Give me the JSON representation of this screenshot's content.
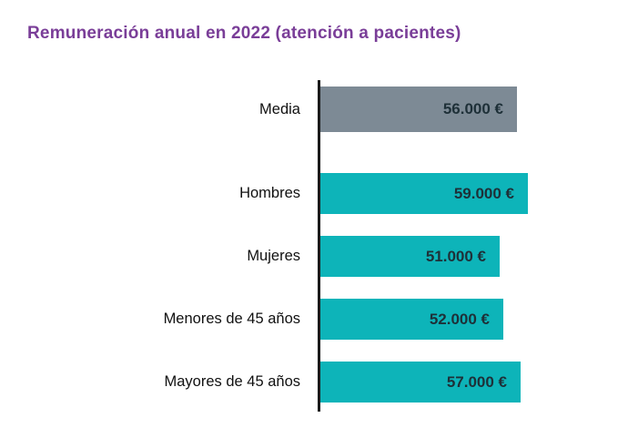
{
  "title": "Remuneración anual en 2022 (atención a pacientes)",
  "colors": {
    "title_text": "#7a3e98",
    "axis_line": "#1a1a1a",
    "label_text": "#111111",
    "value_text": "#1e3038",
    "bar_teal": "#0db4b9",
    "bar_gray": "#7d8a95",
    "background": "#ffffff"
  },
  "chart_data": {
    "type": "bar",
    "orientation": "horizontal",
    "title": "Remuneración anual en 2022 (atención a pacientes)",
    "categories": [
      "Media",
      "Hombres",
      "Mujeres",
      "Menores de 45 años",
      "Mayores de 45 años"
    ],
    "values": [
      56000,
      59000,
      51000,
      52000,
      57000
    ],
    "value_labels": [
      "56.000 €",
      "59.000 €",
      "51.000 €",
      "52.000 €",
      "57.000 €"
    ],
    "bar_colors": [
      "#7d8a95",
      "#0db4b9",
      "#0db4b9",
      "#0db4b9",
      "#0db4b9"
    ],
    "unit": "EUR",
    "xlim": [
      0,
      59000
    ],
    "grid": false,
    "legend": null,
    "notes": "First bar (Media) is gray and separated from the group of four teal bars; single black vertical baseline on the left of bars; value labels printed inside bars, right-aligned."
  }
}
